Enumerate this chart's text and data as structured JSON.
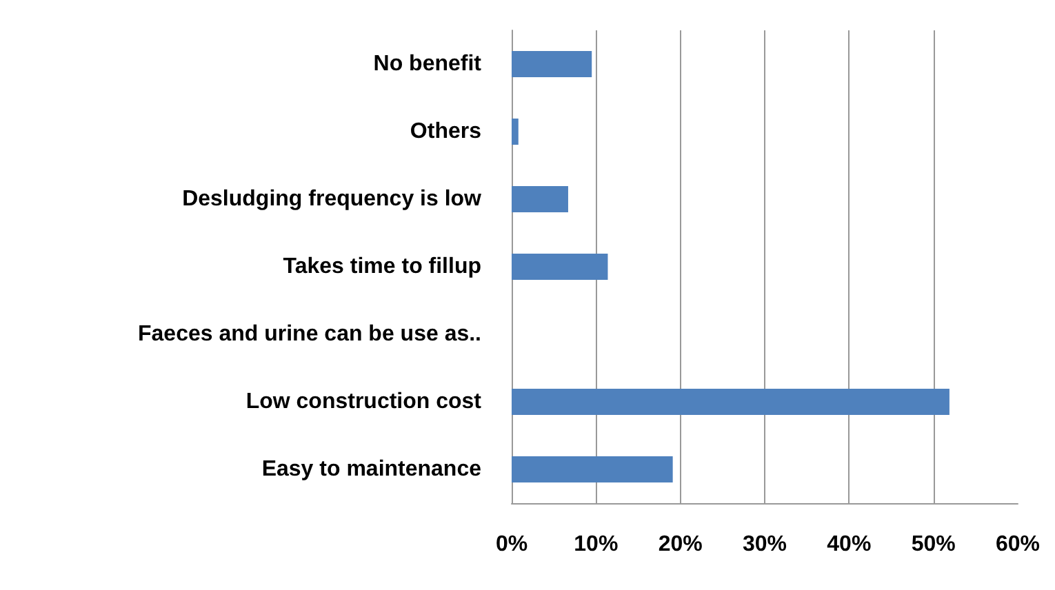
{
  "chart_data": {
    "type": "bar",
    "orientation": "horizontal",
    "categories": [
      "No benefit",
      "Others",
      "Desludging frequency is low",
      "Takes time to fillup",
      "Faeces and urine can be use as..",
      "Low construction cost",
      "Easy to maintenance"
    ],
    "values": [
      9.5,
      0.8,
      6.7,
      11.4,
      0,
      51.9,
      19.1
    ],
    "color": "#4f81bd",
    "xlim": [
      0,
      60
    ],
    "xticks": [
      {
        "value": 0,
        "label": "0%"
      },
      {
        "value": 10,
        "label": "10%"
      },
      {
        "value": 20,
        "label": "20%"
      },
      {
        "value": 30,
        "label": "30%"
      },
      {
        "value": 40,
        "label": "40%"
      },
      {
        "value": 50,
        "label": "50%"
      },
      {
        "value": 60,
        "label": "60%"
      }
    ],
    "grid": "x"
  }
}
